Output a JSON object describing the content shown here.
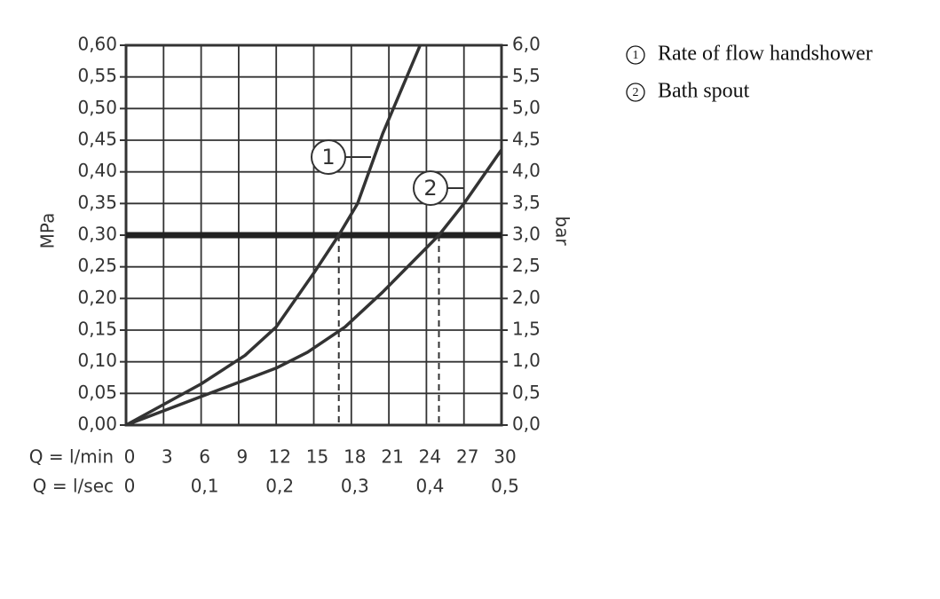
{
  "chart_data": {
    "type": "line",
    "y_label": "MPa",
    "y2_label": "bar",
    "x_label": "Q = l/min",
    "x2_label": "Q = l/sec",
    "xlim": [
      0,
      30
    ],
    "xticks": [
      0,
      3,
      6,
      9,
      12,
      15,
      18,
      21,
      24,
      27,
      30
    ],
    "x2lim": [
      0,
      0.5
    ],
    "x2ticks": [
      {
        "value": 0,
        "label": "0"
      },
      {
        "value": 0.1,
        "label": "0,1"
      },
      {
        "value": 0.2,
        "label": "0,2"
      },
      {
        "value": 0.3,
        "label": "0,3"
      },
      {
        "value": 0.4,
        "label": "0,4"
      },
      {
        "value": 0.5,
        "label": "0,5"
      }
    ],
    "ylim": [
      0,
      0.6
    ],
    "yticks": [
      {
        "value": 0,
        "label": "0,00"
      },
      {
        "value": 0.05,
        "label": "0,05"
      },
      {
        "value": 0.1,
        "label": "0,10"
      },
      {
        "value": 0.15,
        "label": "0,15"
      },
      {
        "value": 0.2,
        "label": "0,20"
      },
      {
        "value": 0.25,
        "label": "0,25"
      },
      {
        "value": 0.3,
        "label": "0,30"
      },
      {
        "value": 0.35,
        "label": "0,35"
      },
      {
        "value": 0.4,
        "label": "0,40"
      },
      {
        "value": 0.45,
        "label": "0,45"
      },
      {
        "value": 0.5,
        "label": "0,50"
      },
      {
        "value": 0.55,
        "label": "0,55"
      },
      {
        "value": 0.6,
        "label": "0,60"
      }
    ],
    "y2lim": [
      0,
      6
    ],
    "y2ticks": [
      {
        "value": 0,
        "label": "0,0"
      },
      {
        "value": 0.5,
        "label": "0,5"
      },
      {
        "value": 1,
        "label": "1,0"
      },
      {
        "value": 1.5,
        "label": "1,5"
      },
      {
        "value": 2,
        "label": "2,0"
      },
      {
        "value": 2.5,
        "label": "2,5"
      },
      {
        "value": 3,
        "label": "3,0"
      },
      {
        "value": 3.5,
        "label": "3,5"
      },
      {
        "value": 4,
        "label": "4,0"
      },
      {
        "value": 4.5,
        "label": "4,5"
      },
      {
        "value": 5,
        "label": "5,0"
      },
      {
        "value": 5.5,
        "label": "5,5"
      },
      {
        "value": 6,
        "label": "6,0"
      }
    ],
    "grid": true,
    "reference_line": 0.3,
    "drop_lines": [
      17,
      25
    ],
    "series": [
      {
        "name": "Rate of flow handshower",
        "color": "#333333",
        "x": [
          0,
          6,
          9.5,
          12,
          15,
          17,
          18.5,
          20.5,
          22,
          23.5
        ],
        "values": [
          0,
          0.065,
          0.11,
          0.155,
          0.24,
          0.3,
          0.35,
          0.46,
          0.53,
          0.6
        ]
      },
      {
        "name": "Bath spout",
        "color": "#333333",
        "x": [
          0,
          6,
          12,
          14.5,
          17.5,
          20.5,
          22.5,
          25,
          27,
          30
        ],
        "values": [
          0,
          0.045,
          0.09,
          0.115,
          0.155,
          0.21,
          0.25,
          0.3,
          0.35,
          0.435
        ]
      }
    ],
    "annotations": [
      {
        "text": "1"
      },
      {
        "text": "2"
      }
    ]
  }
}
